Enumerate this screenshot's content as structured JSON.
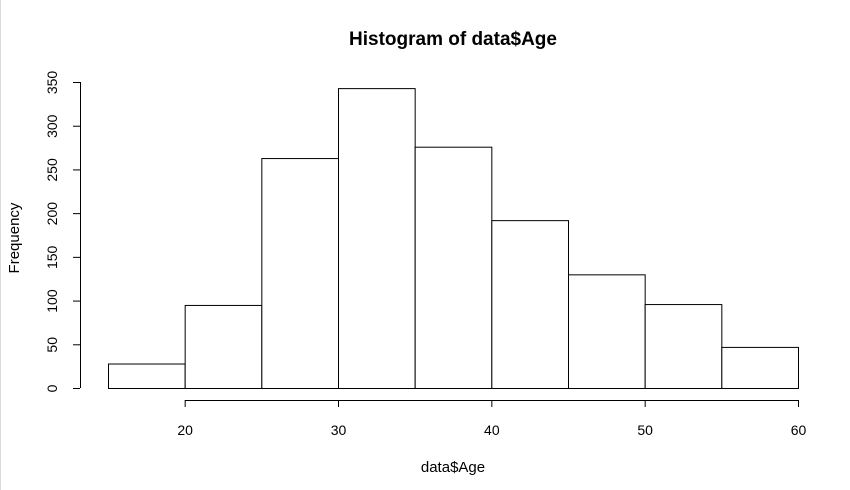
{
  "chart_data": {
    "type": "bar",
    "title": "Histogram of data$Age",
    "xlabel": "data$Age",
    "ylabel": "Frequency",
    "bins": [
      [
        15,
        20
      ],
      [
        20,
        25
      ],
      [
        25,
        30
      ],
      [
        30,
        35
      ],
      [
        35,
        40
      ],
      [
        40,
        45
      ],
      [
        45,
        50
      ],
      [
        50,
        55
      ],
      [
        55,
        60
      ]
    ],
    "values": [
      28,
      95,
      263,
      343,
      276,
      192,
      130,
      96,
      47
    ],
    "xlim": [
      15,
      60
    ],
    "ylim": [
      0,
      350
    ],
    "x_ticks": [
      20,
      30,
      40,
      50,
      60
    ],
    "y_ticks": [
      0,
      50,
      100,
      150,
      200,
      250,
      300,
      350
    ],
    "grid": false,
    "bar_fill": "#ffffff",
    "bar_stroke": "#000000"
  }
}
